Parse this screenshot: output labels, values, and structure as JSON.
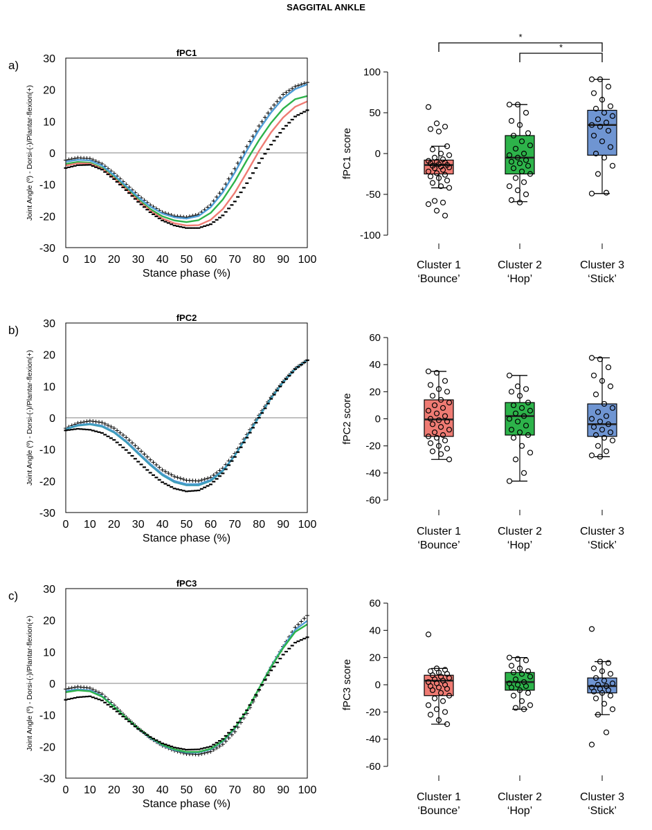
{
  "title": "SAGGITAL ANKLE",
  "colors": {
    "cluster1": "#EF7B73",
    "cluster2": "#2DB34A",
    "cluster3": "#6F95D2",
    "blue_line": "#4E9CD6",
    "teal_line": "#3E9DBA",
    "axis": "#000000",
    "zero_line": "#9a9a9a"
  },
  "shared": {
    "curve_xlabel": "Stance phase (%)",
    "curve_ylabel": "Joint Angle (º) - Dorsi-(-)/Plantar-flexion(+)",
    "curve_xticks": [
      0,
      10,
      20,
      30,
      40,
      50,
      60,
      70,
      80,
      90,
      100
    ],
    "curve_yticks": [
      -30,
      -20,
      -10,
      0,
      10,
      20,
      30
    ],
    "clusters": [
      {
        "line1": "Cluster 1",
        "line2": "‘Bounce’"
      },
      {
        "line1": "Cluster 2",
        "line2": "‘Hop’"
      },
      {
        "line1": "Cluster 3",
        "line2": "‘Stick’"
      }
    ]
  },
  "chart_data": [
    {
      "type": "line",
      "panel_label": "a)",
      "title": "fPC1",
      "xlabel": "Stance phase (%)",
      "ylabel": "Joint Angle (º) - Dorsi-(-)/Plantar-flexion(+)",
      "xlim": [
        0,
        100
      ],
      "ylim": [
        -30,
        30
      ],
      "reference_line": 0,
      "x": [
        0,
        5,
        10,
        15,
        20,
        25,
        30,
        35,
        40,
        45,
        50,
        55,
        60,
        65,
        70,
        75,
        80,
        85,
        90,
        95,
        100
      ],
      "series": [
        {
          "style": "plus-markers",
          "color": "#000000",
          "values": [
            -2.3,
            -1.6,
            -1.8,
            -3.5,
            -6.5,
            -10.0,
            -13.5,
            -16.5,
            -18.8,
            -20.0,
            -20.4,
            -19.5,
            -16.5,
            -11.5,
            -5.0,
            2.0,
            8.5,
            14.0,
            18.5,
            21.0,
            22.3
          ]
        },
        {
          "style": "line",
          "color": "#4E9CD6",
          "values": [
            -2.8,
            -2.2,
            -2.4,
            -4.0,
            -7.0,
            -10.5,
            -14.0,
            -17.0,
            -19.2,
            -20.4,
            -20.8,
            -20.0,
            -17.2,
            -12.5,
            -6.2,
            0.8,
            7.3,
            12.8,
            17.3,
            20.2,
            21.7
          ]
        },
        {
          "style": "line",
          "color": "#2DB34A",
          "values": [
            -3.5,
            -2.9,
            -3.1,
            -4.7,
            -7.7,
            -11.2,
            -14.7,
            -17.8,
            -20.1,
            -21.4,
            -21.9,
            -21.3,
            -19.0,
            -14.8,
            -9.0,
            -2.3,
            4.0,
            9.5,
            14.0,
            17.0,
            18.0
          ]
        },
        {
          "style": "line",
          "color": "#EF7B73",
          "values": [
            -4.0,
            -3.3,
            -3.4,
            -5.0,
            -8.0,
            -11.5,
            -15.1,
            -18.3,
            -20.8,
            -22.3,
            -23.0,
            -22.9,
            -21.2,
            -17.8,
            -12.6,
            -6.1,
            0.6,
            6.5,
            11.2,
            14.6,
            16.3
          ]
        },
        {
          "style": "dash-markers",
          "color": "#000000",
          "values": [
            -4.8,
            -3.9,
            -3.8,
            -5.3,
            -8.3,
            -11.8,
            -15.5,
            -18.8,
            -21.4,
            -23.0,
            -23.8,
            -23.8,
            -22.6,
            -19.8,
            -15.4,
            -9.6,
            -3.2,
            2.6,
            7.6,
            11.5,
            13.5
          ]
        }
      ]
    },
    {
      "type": "box",
      "title": "",
      "ylabel": "fPC1 score",
      "ylim": [
        -100,
        100
      ],
      "yticks": [
        -100,
        -50,
        0,
        50,
        100
      ],
      "categories": [
        "Cluster 1 ‘Bounce’",
        "Cluster 2 ‘Hop’",
        "Cluster 3 ‘Stick’"
      ],
      "boxes": [
        {
          "min": -42,
          "q1": -25,
          "median": -14,
          "q3": -8,
          "max": 9,
          "points": [
            57,
            37,
            33,
            30,
            27,
            9,
            5,
            0,
            -2,
            -5,
            -7,
            -9,
            -10,
            -11,
            -12,
            -13,
            -14,
            -15,
            -16,
            -17,
            -18,
            -20,
            -22,
            -24,
            -26,
            -28,
            -30,
            -33,
            -36,
            -40,
            -42,
            -58,
            -60,
            -62,
            -70,
            -76
          ]
        },
        {
          "min": -59,
          "q1": -25,
          "median": -5,
          "q3": 22,
          "max": 60,
          "points": [
            60,
            60,
            50,
            40,
            35,
            25,
            22,
            15,
            10,
            6,
            0,
            -2,
            -5,
            -8,
            -10,
            -12,
            -15,
            -18,
            -22,
            -25,
            -30,
            -35,
            -40,
            -45,
            -50,
            -57,
            -60
          ]
        },
        {
          "min": -49,
          "q1": -2,
          "median": 35,
          "q3": 53,
          "max": 91,
          "points": [
            91,
            91,
            82,
            74,
            66,
            58,
            55,
            50,
            46,
            42,
            38,
            35,
            33,
            28,
            22,
            15,
            8,
            0,
            -5,
            -15,
            -25,
            -48,
            -49
          ]
        }
      ],
      "significance": [
        {
          "from": "Cluster 1 ‘Bounce’",
          "to": "Cluster 3 ‘Stick’",
          "label": "*"
        },
        {
          "from": "Cluster 2 ‘Hop’",
          "to": "Cluster 3 ‘Stick’",
          "label": "*"
        }
      ]
    },
    {
      "type": "line",
      "panel_label": "b)",
      "title": "fPC2",
      "xlabel": "Stance phase (%)",
      "ylabel": "Joint Angle (º) - Dorsi-(-)/Plantar-flexion(+)",
      "xlim": [
        0,
        100
      ],
      "ylim": [
        -30,
        30
      ],
      "reference_line": 0,
      "x": [
        0,
        5,
        10,
        15,
        20,
        25,
        30,
        35,
        40,
        45,
        50,
        55,
        60,
        65,
        70,
        75,
        80,
        85,
        90,
        95,
        100
      ],
      "series": [
        {
          "style": "plus-markers",
          "color": "#000000",
          "values": [
            -3.3,
            -1.7,
            -1.0,
            -1.5,
            -3.3,
            -6.2,
            -9.7,
            -13.3,
            -16.5,
            -18.6,
            -19.8,
            -20.0,
            -18.9,
            -16.0,
            -11.3,
            -5.3,
            0.8,
            6.5,
            11.5,
            15.6,
            18.3
          ]
        },
        {
          "style": "line",
          "color": "#4E9CD6",
          "values": [
            -3.5,
            -2.3,
            -1.9,
            -2.5,
            -4.4,
            -7.4,
            -11.0,
            -14.6,
            -17.8,
            -20.0,
            -21.0,
            -21.0,
            -19.7,
            -16.7,
            -11.9,
            -5.8,
            0.4,
            6.2,
            11.3,
            15.5,
            18.3
          ]
        },
        {
          "style": "line",
          "color": "#3E9DBA",
          "values": [
            -3.6,
            -2.5,
            -2.1,
            -2.8,
            -4.7,
            -7.7,
            -11.4,
            -15.0,
            -18.2,
            -20.4,
            -21.4,
            -21.4,
            -20.0,
            -16.9,
            -12.0,
            -5.9,
            0.3,
            6.2,
            11.3,
            15.5,
            18.3
          ]
        },
        {
          "style": "dash-markers",
          "color": "#000000",
          "values": [
            -4.0,
            -3.5,
            -3.8,
            -4.8,
            -7.0,
            -10.2,
            -13.9,
            -17.4,
            -20.4,
            -22.4,
            -23.3,
            -23.0,
            -21.1,
            -17.6,
            -12.4,
            -6.3,
            0.0,
            6.0,
            11.2,
            15.4,
            18.2
          ]
        }
      ]
    },
    {
      "type": "box",
      "title": "",
      "ylabel": "fPC2 score",
      "ylim": [
        -60,
        60
      ],
      "yticks": [
        -60,
        -40,
        -20,
        0,
        20,
        40,
        60
      ],
      "categories": [
        "Cluster 1 ‘Bounce’",
        "Cluster 2 ‘Hop’",
        "Cluster 3 ‘Stick’"
      ],
      "boxes": [
        {
          "min": -30,
          "q1": -13,
          "median": -0.5,
          "q3": 14,
          "max": 35,
          "points": [
            35,
            34,
            28,
            25,
            22,
            20,
            17,
            14,
            12,
            10,
            8,
            6,
            4,
            2,
            0,
            -1,
            -2,
            -4,
            -6,
            -8,
            -10,
            -12,
            -13,
            -14,
            -16,
            -18,
            -20,
            -22,
            -24,
            -26,
            -30
          ]
        },
        {
          "min": -46,
          "q1": -12,
          "median": 2,
          "q3": 12,
          "max": 32,
          "points": [
            32,
            24,
            22,
            20,
            17,
            12,
            10,
            8,
            6,
            4,
            2,
            0,
            -2,
            -5,
            -8,
            -10,
            -12,
            -14,
            -20,
            -25,
            -30,
            -40,
            -46
          ]
        },
        {
          "min": -28,
          "q1": -13,
          "median": -4,
          "q3": 11,
          "max": 45,
          "points": [
            45,
            44,
            38,
            32,
            28,
            24,
            18,
            11,
            8,
            5,
            2,
            0,
            -2,
            -4,
            -6,
            -8,
            -10,
            -12,
            -14,
            -16,
            -20,
            -24,
            -27,
            -28
          ]
        }
      ],
      "significance": []
    },
    {
      "type": "line",
      "panel_label": "c)",
      "title": "fPC3",
      "xlabel": "Stance phase (%)",
      "ylabel": "Joint Angle (º) - Dorsi-(-)/Plantar-flexion(+)",
      "xlim": [
        0,
        100
      ],
      "ylim": [
        -30,
        30
      ],
      "reference_line": 0,
      "x": [
        0,
        5,
        10,
        15,
        20,
        25,
        30,
        35,
        40,
        45,
        50,
        55,
        60,
        65,
        70,
        75,
        80,
        85,
        90,
        95,
        100
      ],
      "series": [
        {
          "style": "plus-markers",
          "color": "#000000",
          "values": [
            -1.8,
            -1.1,
            -1.5,
            -3.4,
            -6.9,
            -10.7,
            -14.2,
            -17.3,
            -19.7,
            -21.3,
            -22.3,
            -22.5,
            -21.6,
            -19.3,
            -15.3,
            -9.5,
            -2.2,
            5.1,
            11.7,
            17.7,
            21.5
          ]
        },
        {
          "style": "line",
          "color": "#4E9CD6",
          "values": [
            -2.4,
            -1.9,
            -2.2,
            -4.0,
            -7.3,
            -10.9,
            -14.3,
            -17.3,
            -19.6,
            -21.1,
            -21.9,
            -21.9,
            -20.9,
            -18.4,
            -14.3,
            -8.7,
            -1.6,
            5.4,
            11.6,
            17.0,
            19.8
          ]
        },
        {
          "style": "line",
          "color": "#2DB34A",
          "values": [
            -2.8,
            -2.2,
            -2.5,
            -4.2,
            -7.4,
            -10.9,
            -14.2,
            -17.1,
            -19.4,
            -20.9,
            -21.7,
            -21.7,
            -20.7,
            -18.2,
            -14.1,
            -8.6,
            -1.6,
            5.2,
            11.2,
            16.3,
            18.7
          ]
        },
        {
          "style": "dash-markers",
          "color": "#000000",
          "values": [
            -5.2,
            -4.4,
            -4.1,
            -5.4,
            -8.1,
            -11.3,
            -14.4,
            -17.0,
            -19.0,
            -20.3,
            -21.0,
            -20.9,
            -20.0,
            -17.6,
            -13.7,
            -8.5,
            -2.0,
            4.1,
            9.1,
            12.9,
            14.6
          ]
        }
      ]
    },
    {
      "type": "box",
      "title": "",
      "ylabel": "fPC3 score",
      "ylim": [
        -60,
        60
      ],
      "yticks": [
        -60,
        -40,
        -20,
        0,
        20,
        40,
        60
      ],
      "categories": [
        "Cluster 1 ‘Bounce’",
        "Cluster 2 ‘Hop’",
        "Cluster 3 ‘Stick’"
      ],
      "boxes": [
        {
          "min": -29,
          "q1": -8,
          "median": 3,
          "q3": 7,
          "max": 12,
          "points": [
            37,
            12,
            11,
            10,
            9,
            8,
            7,
            6,
            5,
            4,
            3,
            2,
            1,
            0,
            -1,
            -2,
            -3,
            -4,
            -6,
            -8,
            -10,
            -12,
            -15,
            -18,
            -20,
            -22,
            -26,
            -29
          ]
        },
        {
          "min": -18,
          "q1": -4,
          "median": 2,
          "q3": 9,
          "max": 20,
          "points": [
            20,
            19,
            18,
            14,
            12,
            10,
            9,
            8,
            6,
            4,
            2,
            1,
            0,
            -1,
            -2,
            -4,
            -6,
            -8,
            -12,
            -15,
            -17,
            -18
          ]
        },
        {
          "min": -22,
          "q1": -6,
          "median": -1,
          "q3": 5,
          "max": 17,
          "points": [
            41,
            17,
            16,
            12,
            10,
            8,
            5,
            3,
            1,
            0,
            -1,
            -2,
            -3,
            -4,
            -5,
            -6,
            -8,
            -10,
            -14,
            -18,
            -22,
            -35,
            -44
          ]
        }
      ],
      "significance": []
    }
  ]
}
